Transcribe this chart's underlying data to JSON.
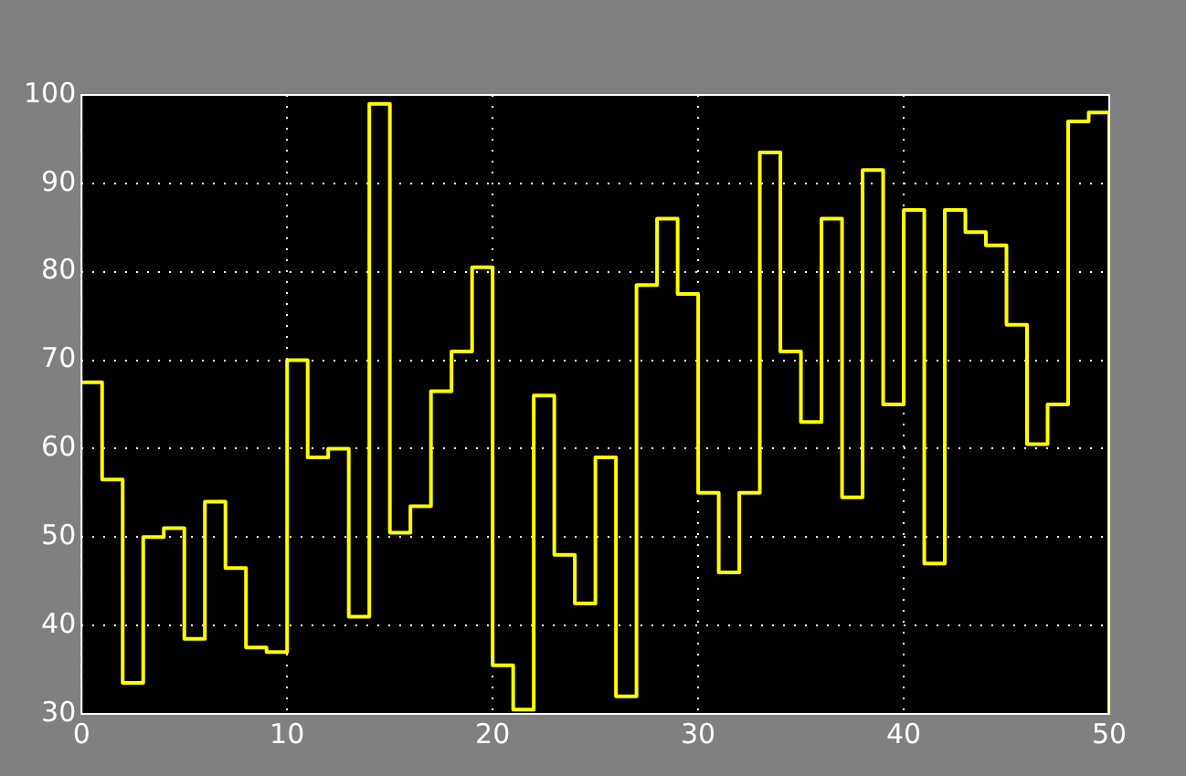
{
  "chart_data": {
    "type": "step",
    "x": [
      0,
      1,
      2,
      3,
      4,
      5,
      6,
      7,
      8,
      9,
      10,
      11,
      12,
      13,
      14,
      15,
      16,
      17,
      18,
      19,
      20,
      21,
      22,
      23,
      24,
      25,
      26,
      27,
      28,
      29,
      30,
      31,
      32,
      33,
      34,
      35,
      36,
      37,
      38,
      39,
      40,
      41,
      42,
      43,
      44,
      45,
      46,
      47,
      48,
      49,
      50
    ],
    "series": [
      {
        "color": "#ffff00",
        "values": [
          67.5,
          56.5,
          33.5,
          50,
          51,
          38.5,
          54,
          46.5,
          37.5,
          37,
          70,
          59,
          60,
          41,
          99,
          50.5,
          53.5,
          66.5,
          71,
          80.5,
          35.5,
          30.5,
          66,
          48,
          42.5,
          59,
          32,
          78.5,
          86,
          77.5,
          55,
          46,
          55,
          93.5,
          71,
          63,
          86,
          54.5,
          91.5,
          65,
          87,
          47,
          87,
          84.5,
          83,
          74,
          60.5,
          65,
          97,
          98,
          30
        ]
      }
    ],
    "xlim": [
      0,
      50
    ],
    "ylim": [
      30,
      100
    ],
    "xticks": [
      0,
      10,
      20,
      30,
      40,
      50
    ],
    "yticks": [
      30,
      40,
      50,
      60,
      70,
      80,
      90,
      100
    ],
    "grid": true,
    "legend": false,
    "marker": "none",
    "line_style": "solid"
  }
}
